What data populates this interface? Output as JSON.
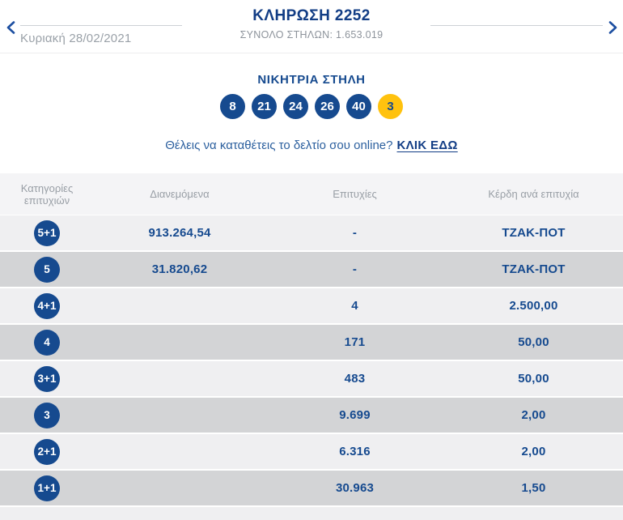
{
  "header": {
    "title": "ΚΛΗΡΩΣΗ 2252",
    "total_columns": "ΣΥΝΟΛΟ ΣΤΗΛΩΝ: 1.653.019",
    "date": "Κυριακή 28/02/2021"
  },
  "winning": {
    "title": "ΝΙΚΗΤΡΙΑ ΣΤΗΛΗ",
    "numbers": [
      "8",
      "21",
      "24",
      "26",
      "40"
    ],
    "bonus": "3"
  },
  "online_prompt": {
    "text": "Θέλεις να καταθέτεις το δελτίο σου online?",
    "link": "ΚΛΙΚ ΕΔΩ"
  },
  "table": {
    "headers": [
      "Κατηγορίες επιτυχιών",
      "Διανεμόμενα",
      "Επιτυχίες",
      "Κέρδη ανά επιτυχία"
    ],
    "rows": [
      {
        "category": "5+1",
        "distributed": "913.264,54",
        "winners": "-",
        "prize": "ΤΖΑΚ-ΠΟΤ"
      },
      {
        "category": "5",
        "distributed": "31.820,62",
        "winners": "-",
        "prize": "ΤΖΑΚ-ΠΟΤ"
      },
      {
        "category": "4+1",
        "distributed": "",
        "winners": "4",
        "prize": "2.500,00"
      },
      {
        "category": "4",
        "distributed": "",
        "winners": "171",
        "prize": "50,00"
      },
      {
        "category": "3+1",
        "distributed": "",
        "winners": "483",
        "prize": "50,00"
      },
      {
        "category": "3",
        "distributed": "",
        "winners": "9.699",
        "prize": "2,00"
      },
      {
        "category": "2+1",
        "distributed": "",
        "winners": "6.316",
        "prize": "2,00"
      },
      {
        "category": "1+1",
        "distributed": "",
        "winners": "30.963",
        "prize": "1,50"
      }
    ]
  },
  "colors": {
    "dark_blue": "#164a8f",
    "title_blue": "#123d85",
    "link_blue": "#2b5f9e",
    "arrow_blue": "#1d4fa1",
    "yellow": "#ffc20e",
    "row_light": "#efeff1",
    "row_dark": "#d3d4d6",
    "thead_bg": "#f4f4f6"
  }
}
